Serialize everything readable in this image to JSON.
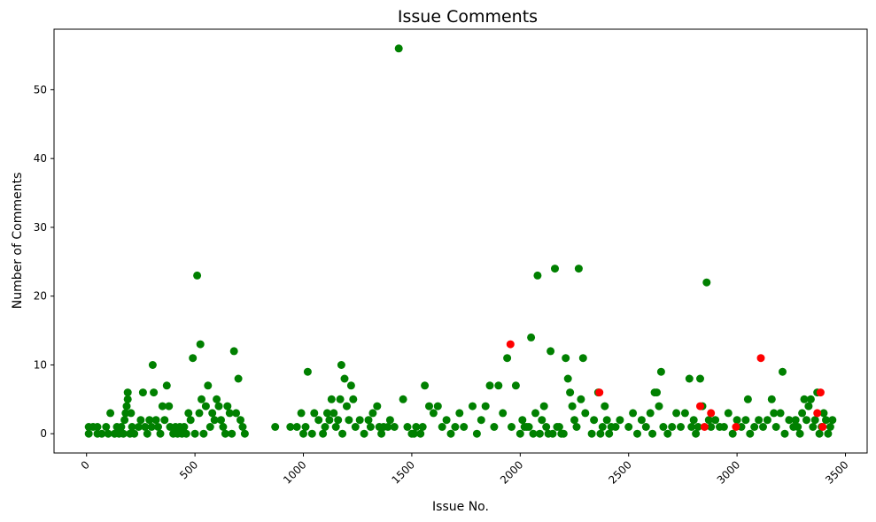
{
  "chart_data": {
    "type": "scatter",
    "title": "Issue Comments",
    "xlabel": "Issue No.",
    "ylabel": "Number of Comments",
    "xlim": [
      -150,
      3600
    ],
    "ylim": [
      -2.8,
      58.8
    ],
    "x_ticks": [
      0,
      500,
      1000,
      1500,
      2000,
      2500,
      3000,
      3500
    ],
    "y_ticks": [
      0,
      10,
      20,
      30,
      40,
      50
    ],
    "x_tick_rotation": 45,
    "grid": false,
    "legend": "none",
    "colors": {
      "green": "#008000",
      "red": "#ff0000"
    },
    "series": [
      {
        "color": "green",
        "points": [
          [
            10,
            0
          ],
          [
            10,
            1
          ],
          [
            30,
            1
          ],
          [
            50,
            0
          ],
          [
            50,
            1
          ],
          [
            70,
            0
          ],
          [
            90,
            1
          ],
          [
            100,
            0
          ],
          [
            110,
            3
          ],
          [
            130,
            0
          ],
          [
            140,
            1
          ],
          [
            150,
            0
          ],
          [
            160,
            1
          ],
          [
            170,
            0
          ],
          [
            175,
            2
          ],
          [
            180,
            3
          ],
          [
            185,
            4
          ],
          [
            190,
            6
          ],
          [
            190,
            5
          ],
          [
            200,
            0
          ],
          [
            205,
            3
          ],
          [
            210,
            1
          ],
          [
            220,
            0
          ],
          [
            240,
            1
          ],
          [
            250,
            2
          ],
          [
            260,
            6
          ],
          [
            270,
            1
          ],
          [
            280,
            0
          ],
          [
            290,
            2
          ],
          [
            300,
            1
          ],
          [
            305,
            10
          ],
          [
            310,
            6
          ],
          [
            320,
            2
          ],
          [
            330,
            1
          ],
          [
            340,
            0
          ],
          [
            350,
            4
          ],
          [
            360,
            2
          ],
          [
            370,
            7
          ],
          [
            380,
            4
          ],
          [
            385,
            1
          ],
          [
            400,
            0
          ],
          [
            410,
            1
          ],
          [
            420,
            0
          ],
          [
            430,
            1
          ],
          [
            440,
            0
          ],
          [
            450,
            1
          ],
          [
            460,
            0
          ],
          [
            470,
            3
          ],
          [
            480,
            2
          ],
          [
            490,
            11
          ],
          [
            500,
            0
          ],
          [
            510,
            23
          ],
          [
            520,
            3
          ],
          [
            525,
            13
          ],
          [
            530,
            5
          ],
          [
            540,
            0
          ],
          [
            550,
            4
          ],
          [
            560,
            7
          ],
          [
            570,
            1
          ],
          [
            580,
            3
          ],
          [
            590,
            2
          ],
          [
            600,
            5
          ],
          [
            610,
            4
          ],
          [
            620,
            2
          ],
          [
            630,
            1
          ],
          [
            640,
            0
          ],
          [
            650,
            4
          ],
          [
            660,
            3
          ],
          [
            670,
            0
          ],
          [
            680,
            12
          ],
          [
            690,
            3
          ],
          [
            700,
            8
          ],
          [
            710,
            2
          ],
          [
            720,
            1
          ],
          [
            730,
            0
          ],
          [
            870,
            1
          ],
          [
            940,
            1
          ],
          [
            970,
            1
          ],
          [
            990,
            3
          ],
          [
            1000,
            0
          ],
          [
            1010,
            1
          ],
          [
            1020,
            9
          ],
          [
            1040,
            0
          ],
          [
            1050,
            3
          ],
          [
            1070,
            2
          ],
          [
            1090,
            0
          ],
          [
            1100,
            1
          ],
          [
            1110,
            3
          ],
          [
            1120,
            2
          ],
          [
            1130,
            5
          ],
          [
            1140,
            3
          ],
          [
            1150,
            1
          ],
          [
            1160,
            2
          ],
          [
            1170,
            5
          ],
          [
            1175,
            10
          ],
          [
            1180,
            0
          ],
          [
            1190,
            8
          ],
          [
            1200,
            4
          ],
          [
            1210,
            2
          ],
          [
            1220,
            7
          ],
          [
            1230,
            5
          ],
          [
            1240,
            1
          ],
          [
            1260,
            2
          ],
          [
            1280,
            0
          ],
          [
            1300,
            2
          ],
          [
            1310,
            1
          ],
          [
            1320,
            3
          ],
          [
            1340,
            4
          ],
          [
            1350,
            1
          ],
          [
            1360,
            0
          ],
          [
            1370,
            1
          ],
          [
            1390,
            1
          ],
          [
            1400,
            2
          ],
          [
            1420,
            1
          ],
          [
            1440,
            56
          ],
          [
            1460,
            5
          ],
          [
            1480,
            1
          ],
          [
            1500,
            0
          ],
          [
            1510,
            0
          ],
          [
            1520,
            1
          ],
          [
            1540,
            0
          ],
          [
            1550,
            1
          ],
          [
            1560,
            7
          ],
          [
            1580,
            4
          ],
          [
            1600,
            3
          ],
          [
            1620,
            4
          ],
          [
            1640,
            1
          ],
          [
            1660,
            2
          ],
          [
            1680,
            0
          ],
          [
            1700,
            1
          ],
          [
            1720,
            3
          ],
          [
            1740,
            1
          ],
          [
            1780,
            4
          ],
          [
            1800,
            0
          ],
          [
            1820,
            2
          ],
          [
            1840,
            4
          ],
          [
            1860,
            7
          ],
          [
            1880,
            1
          ],
          [
            1900,
            7
          ],
          [
            1920,
            3
          ],
          [
            1940,
            11
          ],
          [
            1960,
            1
          ],
          [
            1980,
            7
          ],
          [
            2000,
            0
          ],
          [
            2010,
            2
          ],
          [
            2020,
            1
          ],
          [
            2030,
            1
          ],
          [
            2040,
            1
          ],
          [
            2050,
            14
          ],
          [
            2060,
            0
          ],
          [
            2070,
            3
          ],
          [
            2080,
            23
          ],
          [
            2090,
            0
          ],
          [
            2100,
            2
          ],
          [
            2110,
            4
          ],
          [
            2120,
            1
          ],
          [
            2130,
            0
          ],
          [
            2140,
            12
          ],
          [
            2150,
            0
          ],
          [
            2160,
            24
          ],
          [
            2170,
            1
          ],
          [
            2180,
            1
          ],
          [
            2190,
            0
          ],
          [
            2200,
            0
          ],
          [
            2210,
            11
          ],
          [
            2220,
            8
          ],
          [
            2230,
            6
          ],
          [
            2240,
            4
          ],
          [
            2250,
            2
          ],
          [
            2260,
            1
          ],
          [
            2270,
            24
          ],
          [
            2280,
            5
          ],
          [
            2290,
            11
          ],
          [
            2300,
            3
          ],
          [
            2330,
            0
          ],
          [
            2340,
            2
          ],
          [
            2360,
            6
          ],
          [
            2370,
            0
          ],
          [
            2380,
            1
          ],
          [
            2390,
            4
          ],
          [
            2400,
            2
          ],
          [
            2410,
            0
          ],
          [
            2420,
            1
          ],
          [
            2440,
            1
          ],
          [
            2460,
            2
          ],
          [
            2500,
            1
          ],
          [
            2520,
            3
          ],
          [
            2540,
            0
          ],
          [
            2560,
            2
          ],
          [
            2580,
            1
          ],
          [
            2600,
            3
          ],
          [
            2610,
            0
          ],
          [
            2620,
            6
          ],
          [
            2630,
            6
          ],
          [
            2640,
            4
          ],
          [
            2650,
            9
          ],
          [
            2660,
            1
          ],
          [
            2680,
            0
          ],
          [
            2700,
            1
          ],
          [
            2720,
            3
          ],
          [
            2740,
            1
          ],
          [
            2760,
            3
          ],
          [
            2780,
            8
          ],
          [
            2790,
            1
          ],
          [
            2800,
            2
          ],
          [
            2810,
            0
          ],
          [
            2820,
            1
          ],
          [
            2830,
            8
          ],
          [
            2840,
            4
          ],
          [
            2860,
            22
          ],
          [
            2870,
            2
          ],
          [
            2880,
            1
          ],
          [
            2900,
            2
          ],
          [
            2920,
            1
          ],
          [
            2940,
            1
          ],
          [
            2960,
            3
          ],
          [
            2980,
            0
          ],
          [
            3000,
            2
          ],
          [
            3020,
            1
          ],
          [
            3040,
            2
          ],
          [
            3050,
            5
          ],
          [
            3060,
            0
          ],
          [
            3080,
            1
          ],
          [
            3100,
            2
          ],
          [
            3120,
            1
          ],
          [
            3140,
            2
          ],
          [
            3160,
            5
          ],
          [
            3170,
            3
          ],
          [
            3180,
            1
          ],
          [
            3200,
            3
          ],
          [
            3210,
            9
          ],
          [
            3220,
            0
          ],
          [
            3240,
            2
          ],
          [
            3260,
            1
          ],
          [
            3270,
            2
          ],
          [
            3280,
            1
          ],
          [
            3290,
            0
          ],
          [
            3300,
            3
          ],
          [
            3310,
            5
          ],
          [
            3320,
            2
          ],
          [
            3330,
            4
          ],
          [
            3340,
            5
          ],
          [
            3350,
            1
          ],
          [
            3360,
            2
          ],
          [
            3370,
            6
          ],
          [
            3380,
            0
          ],
          [
            3390,
            1
          ],
          [
            3400,
            3
          ],
          [
            3410,
            2
          ],
          [
            3420,
            0
          ],
          [
            3430,
            1
          ],
          [
            3440,
            2
          ]
        ]
      },
      {
        "color": "red",
        "points": [
          [
            1955,
            13
          ],
          [
            2365,
            6
          ],
          [
            2830,
            4
          ],
          [
            2850,
            1
          ],
          [
            2880,
            3
          ],
          [
            2995,
            1
          ],
          [
            3110,
            11
          ],
          [
            3370,
            3
          ],
          [
            3385,
            6
          ],
          [
            3395,
            1
          ]
        ]
      }
    ]
  }
}
